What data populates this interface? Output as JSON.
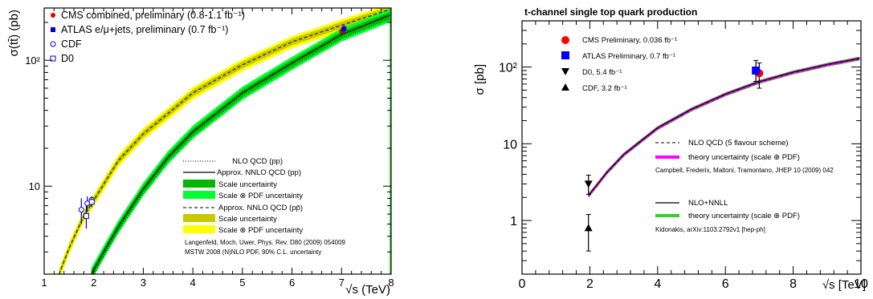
{
  "chart_data": [
    {
      "type": "line",
      "title": "",
      "xlabel": "√s (TeV)",
      "ylabel": "σ(tt̄) (pb)",
      "xlim": [
        1,
        8
      ],
      "ylim": [
        2,
        260
      ],
      "yscale": "log",
      "xticks": [
        "1",
        "2",
        "3",
        "4",
        "5",
        "6",
        "7",
        "8"
      ],
      "yticks": [
        "10",
        "10²"
      ],
      "legend_top": [
        {
          "label": "CMS combined, preliminary (0.8-1.1 fb⁻¹)",
          "marker": "filled-circle",
          "color": "#e00000"
        },
        {
          "label": "ATLAS e/μ+jets, preliminary (0.7 fb⁻¹)",
          "marker": "filled-square",
          "color": "#0000cc"
        },
        {
          "label": "CDF",
          "marker": "open-circle",
          "color": "#0000cc"
        },
        {
          "label": "D0",
          "marker": "open-square",
          "color": "#0000cc"
        }
      ],
      "legend_bottom": [
        {
          "label": "NLO QCD (pp)",
          "style": "dotted"
        },
        {
          "label": "Approx. NNLO QCD (pp)",
          "style": "solid"
        },
        {
          "label": "Scale uncertainty",
          "style": "box",
          "color": "#00b800"
        },
        {
          "label": "Scale ⊗ PDF uncertainty",
          "style": "box",
          "color": "#00ff30"
        },
        {
          "label": "Approx. NNLO QCD (pp̄)",
          "style": "dashed"
        },
        {
          "label": "Scale uncertainty",
          "style": "box",
          "color": "#c8c800"
        },
        {
          "label": "Scale ⊗ PDF uncertainty",
          "style": "box",
          "color": "#ffff00"
        }
      ],
      "refs": [
        "Langenfeld, Moch, Uwer, Phys. Rev. D80 (2009) 054009",
        "MSTW 2008 (N)NLO PDF, 90% C.L. uncertainty"
      ],
      "series": [
        {
          "name": "Approx. NNLO QCD (pp)",
          "x": [
            1.95,
            2.2,
            2.5,
            3,
            3.5,
            4,
            5,
            6,
            7,
            8
          ],
          "y": [
            2.0,
            3.0,
            4.8,
            9.5,
            17,
            27,
            55,
            95,
            160,
            230
          ]
        },
        {
          "name": "Approx. NNLO QCD (pp̄)",
          "x": [
            1.3,
            1.5,
            1.8,
            1.96,
            2.5,
            3,
            4,
            5,
            6,
            7,
            8
          ],
          "y": [
            2.0,
            3.2,
            5.8,
            7.3,
            16,
            26,
            55,
            92,
            140,
            190,
            255
          ]
        }
      ],
      "points": [
        {
          "name": "CMS combined",
          "x": 7.0,
          "y": 170,
          "err": 10
        },
        {
          "name": "ATLAS e/μ+jets",
          "x": 7.05,
          "y": 178,
          "err": 12
        },
        {
          "name": "CDF",
          "x": 1.75,
          "y": 6.5,
          "err": 1.5
        },
        {
          "name": "CDF",
          "x": 1.87,
          "y": 7.3,
          "err": 1.0
        },
        {
          "name": "CDF",
          "x": 1.96,
          "y": 7.8,
          "err": 0.5
        },
        {
          "name": "D0",
          "x": 1.85,
          "y": 5.8,
          "err": 1.2
        },
        {
          "name": "D0",
          "x": 1.96,
          "y": 7.5,
          "err": 0.7
        }
      ]
    },
    {
      "type": "line",
      "title": "t-channel single top quark production",
      "xlabel": "√s [TeV]",
      "ylabel": "σ [pb]",
      "xlim": [
        0,
        10
      ],
      "ylim": [
        0.2,
        400
      ],
      "yscale": "log",
      "xticks": [
        "0",
        "2",
        "4",
        "6",
        "8",
        "10"
      ],
      "yticks": [
        "1",
        "10",
        "10²"
      ],
      "legend_top": [
        {
          "label": "CMS Preliminary, 0.036 fb⁻¹",
          "marker": "filled-circle",
          "color": "#ff0000"
        },
        {
          "label": "ATLAS Preliminary, 0.7 fb⁻¹",
          "marker": "filled-square",
          "color": "#0000ff"
        },
        {
          "label": "D0, 5.4 fb⁻¹",
          "marker": "down-triangle",
          "color": "#000000"
        },
        {
          "label": "CDF, 3.2 fb⁻¹",
          "marker": "up-triangle",
          "color": "#000000"
        }
      ],
      "legend_bottom": [
        {
          "label": "NLO QCD (5 flavour scheme)",
          "style": "dashed"
        },
        {
          "label": "theory uncertainty (scale ⊕ PDF)",
          "style": "thick",
          "color": "#ff00ff"
        },
        {
          "label": "Campbell, Frederix, Maltoni, Tramontano, JHEP 10 (2009) 042",
          "style": "none"
        },
        {
          "label": "NLO+NNLL",
          "style": "solid"
        },
        {
          "label": "theory uncertainty (scale ⊕ PDF)",
          "style": "thick",
          "color": "#33cc33"
        },
        {
          "label": "Kidonakis, arXiv:1103.2792v1 [hep-ph]",
          "style": "none"
        }
      ],
      "series": [
        {
          "name": "NLO QCD (5 flavour scheme)",
          "x": [
            1.96,
            2.5,
            3,
            4,
            5,
            6,
            7,
            8,
            9,
            10
          ],
          "y": [
            2.1,
            4.2,
            7.2,
            16,
            28,
            44,
            64,
            85,
            107,
            130
          ]
        }
      ],
      "points": [
        {
          "name": "CMS Preliminary",
          "x": 7.0,
          "y": 83,
          "err_lo": 30,
          "err_hi": 30
        },
        {
          "name": "ATLAS Preliminary",
          "x": 6.9,
          "y": 90,
          "err_lo": 25,
          "err_hi": 32
        },
        {
          "name": "D0",
          "x": 1.96,
          "y": 3.0,
          "err_lo": 0.8,
          "err_hi": 0.9
        },
        {
          "name": "CDF",
          "x": 1.96,
          "y": 0.8,
          "err_lo": 0.4,
          "err_hi": 0.4
        }
      ]
    }
  ]
}
